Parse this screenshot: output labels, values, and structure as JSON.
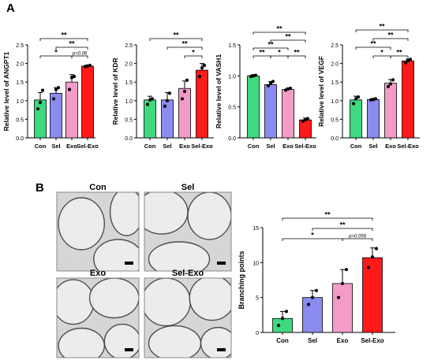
{
  "panels": {
    "a": "A",
    "b": "B"
  },
  "colors": {
    "con": "#3fd97f",
    "sel": "#8b8bf0",
    "exo": "#f39cc8",
    "selexo": "#ff1a1a"
  },
  "chart_data": [
    {
      "id": "angpt1",
      "type": "bar",
      "categories": [
        "Con",
        "Sel",
        "Exo",
        "Sel-Exo"
      ],
      "values": [
        1.02,
        1.2,
        1.5,
        1.93
      ],
      "error": [
        0.2,
        0.15,
        0.2,
        0.03
      ],
      "points": [
        [
          0.78,
          0.95,
          1.28
        ],
        [
          1.05,
          1.3,
          1.35
        ],
        [
          1.3,
          1.62,
          1.65
        ],
        [
          1.92,
          1.93,
          1.95
        ]
      ],
      "ylabel": "Relative level of ANGPT1",
      "ylim": [
        0,
        2.5
      ],
      "yticks": [
        "0.0",
        "0.5",
        "1.0",
        "1.5",
        "2.0",
        "2.5"
      ],
      "annotations": [
        {
          "from": 0,
          "to": 3,
          "text": "**"
        },
        {
          "from": 0,
          "to": 2,
          "text": "*"
        },
        {
          "from": 1,
          "to": 3,
          "text": "**"
        },
        {
          "from": 2,
          "to": 3,
          "text": "p=0.06"
        }
      ]
    },
    {
      "id": "kdr",
      "type": "bar",
      "categories": [
        "Con",
        "Sel",
        "Exo",
        "Sel-Exo"
      ],
      "values": [
        1.02,
        1.02,
        1.33,
        1.82
      ],
      "error": [
        0.1,
        0.2,
        0.2,
        0.18
      ],
      "points": [
        [
          0.9,
          1.02,
          1.05
        ],
        [
          0.85,
          1.0,
          1.2
        ],
        [
          1.05,
          1.25,
          1.55
        ],
        [
          1.65,
          1.88,
          1.95
        ]
      ],
      "ylabel": "Relative level of KDR",
      "ylim": [
        0,
        2.5
      ],
      "yticks": [
        "0.0",
        "0.5",
        "1.0",
        "1.5",
        "2.0",
        "2.5"
      ],
      "annotations": [
        {
          "from": 0,
          "to": 3,
          "text": "**"
        },
        {
          "from": 1,
          "to": 3,
          "text": "**"
        },
        {
          "from": 2,
          "to": 3,
          "text": "*"
        }
      ]
    },
    {
      "id": "vash1",
      "type": "bar",
      "categories": [
        "Con",
        "Sel",
        "Exo",
        "Sel-Exo"
      ],
      "values": [
        1.0,
        0.86,
        0.78,
        0.29
      ],
      "error": [
        0.02,
        0.05,
        0.02,
        0.03
      ],
      "points": [
        [
          0.99,
          1.0,
          1.01
        ],
        [
          0.84,
          0.88,
          0.91
        ],
        [
          0.77,
          0.79,
          0.8
        ],
        [
          0.27,
          0.29,
          0.31
        ]
      ],
      "ylabel": "Relative level of VASH1",
      "ylim": [
        0,
        1.5
      ],
      "yticks": [
        "0.0",
        "0.5",
        "1.0",
        "1.5"
      ],
      "annotations": [
        {
          "from": 0,
          "to": 3,
          "text": "**"
        },
        {
          "from": 0,
          "to": 2,
          "text": "**"
        },
        {
          "from": 0,
          "to": 1,
          "text": "**"
        },
        {
          "from": 1,
          "to": 3,
          "text": "**"
        },
        {
          "from": 1,
          "to": 2,
          "text": "*"
        },
        {
          "from": 2,
          "to": 3,
          "text": "**"
        }
      ]
    },
    {
      "id": "vegf",
      "type": "bar",
      "categories": [
        "Con",
        "Sel",
        "Exo",
        "Sel-Exo"
      ],
      "values": [
        1.02,
        1.03,
        1.47,
        2.07
      ],
      "error": [
        0.1,
        0.03,
        0.1,
        0.05
      ],
      "points": [
        [
          0.92,
          1.05,
          1.1
        ],
        [
          1.02,
          1.03,
          1.05
        ],
        [
          1.38,
          1.45,
          1.56
        ],
        [
          2.02,
          2.08,
          2.11
        ]
      ],
      "ylabel": "Relative level of VEGF",
      "ylim": [
        0,
        2.5
      ],
      "yticks": [
        "0.0",
        "0.5",
        "1.0",
        "1.5",
        "2.0",
        "2.5"
      ],
      "annotations": [
        {
          "from": 0,
          "to": 3,
          "text": "**"
        },
        {
          "from": 1,
          "to": 3,
          "text": "**"
        },
        {
          "from": 0,
          "to": 2,
          "text": "**"
        },
        {
          "from": 2,
          "to": 3,
          "text": "**"
        },
        {
          "from": 1,
          "to": 2,
          "text": "*"
        }
      ]
    },
    {
      "id": "branching",
      "type": "bar",
      "categories": [
        "Con",
        "Sel",
        "Exo",
        "Sel-Exo"
      ],
      "values": [
        2.0,
        5.0,
        7.0,
        10.7
      ],
      "error": [
        1.0,
        1.0,
        2.0,
        1.4
      ],
      "points": [
        [
          1.0,
          2.0,
          3.0
        ],
        [
          4.0,
          5.0,
          6.0
        ],
        [
          5.0,
          7.0,
          9.0
        ],
        [
          9.3,
          10.8,
          12.0
        ]
      ],
      "ylabel": "Branching points",
      "ylim": [
        0,
        15
      ],
      "yticks": [
        "0",
        "5",
        "10",
        "15"
      ],
      "annotations": [
        {
          "from": 0,
          "to": 3,
          "text": "**"
        },
        {
          "from": 1,
          "to": 3,
          "text": "**"
        },
        {
          "from": 0,
          "to": 2,
          "text": "*"
        },
        {
          "from": 2,
          "to": 3,
          "text": "p=0.056"
        }
      ]
    }
  ],
  "micrographs": [
    {
      "id": "con",
      "label": "Con"
    },
    {
      "id": "sel",
      "label": "Sel"
    },
    {
      "id": "exo",
      "label": "Exo"
    },
    {
      "id": "selexo",
      "label": "Sel-Exo"
    }
  ]
}
